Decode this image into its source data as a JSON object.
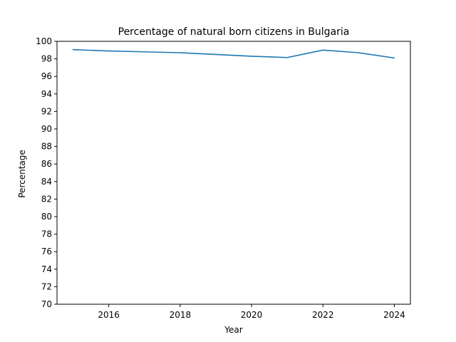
{
  "colors": {
    "series": "#1f77b4"
  },
  "chart_data": {
    "type": "line",
    "title": "Percentage of natural born citizens in Bulgaria",
    "xlabel": "Year",
    "ylabel": "Percentage",
    "x": [
      2015,
      2016,
      2017,
      2018,
      2019,
      2020,
      2021,
      2022,
      2023,
      2024
    ],
    "series": [
      {
        "values": [
          99.05,
          98.9,
          98.8,
          98.7,
          98.5,
          98.3,
          98.15,
          99.0,
          98.7,
          98.1
        ]
      }
    ],
    "xlim": [
      2014.55,
      2024.45
    ],
    "ylim": [
      70,
      100
    ],
    "xticks": [
      2016,
      2018,
      2020,
      2022,
      2024
    ],
    "yticks": [
      70,
      72,
      74,
      76,
      78,
      80,
      82,
      84,
      86,
      88,
      90,
      92,
      94,
      96,
      98,
      100
    ],
    "grid": false,
    "legend": "none"
  }
}
